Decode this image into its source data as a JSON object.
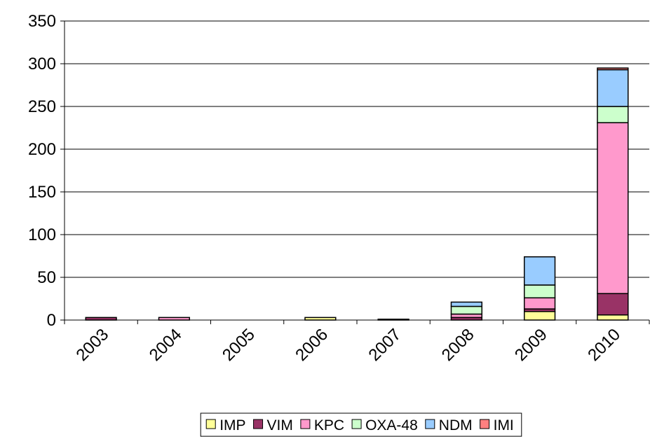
{
  "chart_data": {
    "type": "stacked_bar",
    "categories": [
      "2003",
      "2004",
      "2005",
      "2006",
      "2007",
      "2008",
      "2009",
      "2010"
    ],
    "series": [
      {
        "name": "IMP",
        "color": "#ffff99",
        "values": [
          0,
          0,
          0,
          3,
          0,
          0,
          10,
          6
        ]
      },
      {
        "name": "VIM",
        "color": "#993366",
        "values": [
          3,
          0,
          0,
          0,
          1,
          3,
          3,
          25
        ]
      },
      {
        "name": "KPC",
        "color": "#ff99cc",
        "values": [
          0,
          3,
          0,
          0,
          0,
          4,
          13,
          200
        ]
      },
      {
        "name": "OXA-48",
        "color": "#ccffcc",
        "values": [
          0,
          0,
          0,
          0,
          0,
          9,
          15,
          19
        ]
      },
      {
        "name": "NDM",
        "color": "#99ccff",
        "values": [
          0,
          0,
          0,
          0,
          0,
          5,
          33,
          43
        ]
      },
      {
        "name": "IMI",
        "color": "#ff8080",
        "values": [
          0,
          0,
          0,
          0,
          0,
          0,
          0,
          2
        ]
      }
    ],
    "ylim": [
      0,
      350
    ],
    "yticks": [
      0,
      50,
      100,
      150,
      200,
      250,
      300,
      350
    ],
    "grid": true,
    "legend": "bottom"
  }
}
